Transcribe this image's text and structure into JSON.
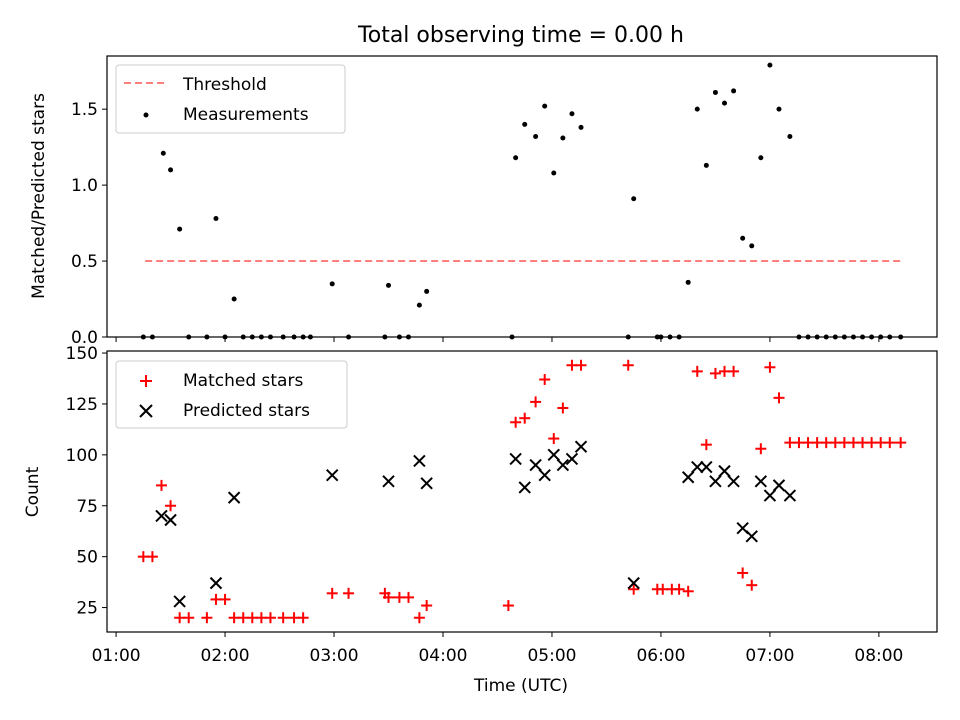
{
  "title": "Total observing time = 0.00 h",
  "xlabel": "Time (UTC)",
  "x_ticks": [
    "01:00",
    "02:00",
    "03:00",
    "04:00",
    "05:00",
    "06:00",
    "07:00",
    "08:00"
  ],
  "chart_data": [
    {
      "type": "scatter",
      "title": "Total observing time = 0.00 h",
      "ylabel": "Matched/Predicted stars",
      "xlim": [
        "00:55",
        "08:32"
      ],
      "ylim": [
        0,
        1.85
      ],
      "y_ticks": [
        "0.0",
        "0.5",
        "1.0",
        "1.5"
      ],
      "legend_position": "top-left",
      "series": [
        {
          "name": "Threshold",
          "style": "dashed-line",
          "color": "#ff7f7f",
          "points": [
            [
              "01:16",
              0.5
            ],
            [
              "08:13",
              0.5
            ]
          ]
        },
        {
          "name": "Measurements",
          "style": "dot",
          "color": "#000000",
          "points": [
            [
              "01:15",
              0
            ],
            [
              "01:20",
              0
            ],
            [
              "01:26",
              1.21
            ],
            [
              "01:30",
              1.1
            ],
            [
              "01:35",
              0.71
            ],
            [
              "01:40",
              0
            ],
            [
              "01:50",
              0
            ],
            [
              "01:55",
              0.78
            ],
            [
              "02:00",
              0
            ],
            [
              "02:05",
              0.25
            ],
            [
              "02:10",
              0
            ],
            [
              "02:15",
              0
            ],
            [
              "02:20",
              0
            ],
            [
              "02:25",
              0
            ],
            [
              "02:32",
              0
            ],
            [
              "02:38",
              0
            ],
            [
              "02:43",
              0
            ],
            [
              "02:47",
              0
            ],
            [
              "02:59",
              0.35
            ],
            [
              "03:08",
              0
            ],
            [
              "03:28",
              0
            ],
            [
              "03:30",
              0.34
            ],
            [
              "03:36",
              0
            ],
            [
              "03:41",
              0
            ],
            [
              "03:47",
              0.21
            ],
            [
              "03:51",
              0.3
            ],
            [
              "04:38",
              0
            ],
            [
              "04:40",
              1.18
            ],
            [
              "04:45",
              1.4
            ],
            [
              "04:51",
              1.32
            ],
            [
              "04:56",
              1.52
            ],
            [
              "05:01",
              1.08
            ],
            [
              "05:06",
              1.31
            ],
            [
              "05:11",
              1.47
            ],
            [
              "05:16",
              1.38
            ],
            [
              "05:42",
              0
            ],
            [
              "05:45",
              0.91
            ],
            [
              "05:58",
              0
            ],
            [
              "06:00",
              0
            ],
            [
              "06:05",
              0
            ],
            [
              "06:10",
              0
            ],
            [
              "06:15",
              0.36
            ],
            [
              "06:20",
              1.5
            ],
            [
              "06:25",
              1.13
            ],
            [
              "06:30",
              1.61
            ],
            [
              "06:35",
              1.54
            ],
            [
              "06:40",
              1.62
            ],
            [
              "06:45",
              0.65
            ],
            [
              "06:50",
              0.6
            ],
            [
              "06:55",
              1.18
            ],
            [
              "07:00",
              1.79
            ],
            [
              "07:05",
              1.5
            ],
            [
              "07:11",
              1.32
            ],
            [
              "07:16",
              0
            ],
            [
              "07:21",
              0
            ],
            [
              "07:26",
              0
            ],
            [
              "07:31",
              0
            ],
            [
              "07:36",
              0
            ],
            [
              "07:41",
              0
            ],
            [
              "07:46",
              0
            ],
            [
              "07:51",
              0
            ],
            [
              "07:56",
              0
            ],
            [
              "08:01",
              0
            ],
            [
              "08:06",
              0
            ],
            [
              "08:12",
              0
            ]
          ]
        }
      ]
    },
    {
      "type": "scatter",
      "xlabel": "Time (UTC)",
      "ylabel": "Count",
      "xlim": [
        "00:55",
        "08:32"
      ],
      "ylim": [
        13,
        151
      ],
      "y_ticks": [
        "25",
        "50",
        "75",
        "100",
        "125",
        "150"
      ],
      "legend_position": "top-left",
      "series": [
        {
          "name": "Matched stars",
          "style": "plus",
          "color": "#ff0000",
          "points": [
            [
              "01:15",
              50
            ],
            [
              "01:20",
              50
            ],
            [
              "01:25",
              85
            ],
            [
              "01:30",
              75
            ],
            [
              "01:35",
              20
            ],
            [
              "01:40",
              20
            ],
            [
              "01:50",
              20
            ],
            [
              "01:55",
              29
            ],
            [
              "02:00",
              29
            ],
            [
              "02:05",
              20
            ],
            [
              "02:10",
              20
            ],
            [
              "02:15",
              20
            ],
            [
              "02:20",
              20
            ],
            [
              "02:25",
              20
            ],
            [
              "02:32",
              20
            ],
            [
              "02:38",
              20
            ],
            [
              "02:43",
              20
            ],
            [
              "02:59",
              32
            ],
            [
              "03:08",
              32
            ],
            [
              "03:28",
              32
            ],
            [
              "03:30",
              30
            ],
            [
              "03:36",
              30
            ],
            [
              "03:41",
              30
            ],
            [
              "03:47",
              20
            ],
            [
              "03:51",
              26
            ],
            [
              "04:36",
              26
            ],
            [
              "04:40",
              116
            ],
            [
              "04:45",
              118
            ],
            [
              "04:51",
              126
            ],
            [
              "04:56",
              137
            ],
            [
              "05:01",
              108
            ],
            [
              "05:06",
              123
            ],
            [
              "05:11",
              144
            ],
            [
              "05:16",
              144
            ],
            [
              "05:42",
              144
            ],
            [
              "05:45",
              34
            ],
            [
              "05:58",
              34
            ],
            [
              "06:01",
              34
            ],
            [
              "06:06",
              34
            ],
            [
              "06:10",
              34
            ],
            [
              "06:15",
              33
            ],
            [
              "06:20",
              141
            ],
            [
              "06:25",
              105
            ],
            [
              "06:30",
              140
            ],
            [
              "06:35",
              141
            ],
            [
              "06:40",
              141
            ],
            [
              "06:45",
              42
            ],
            [
              "06:50",
              36
            ],
            [
              "06:55",
              103
            ],
            [
              "07:00",
              143
            ],
            [
              "07:05",
              128
            ],
            [
              "07:11",
              106
            ],
            [
              "07:16",
              106
            ],
            [
              "07:21",
              106
            ],
            [
              "07:26",
              106
            ],
            [
              "07:31",
              106
            ],
            [
              "07:36",
              106
            ],
            [
              "07:41",
              106
            ],
            [
              "07:46",
              106
            ],
            [
              "07:51",
              106
            ],
            [
              "07:56",
              106
            ],
            [
              "08:01",
              106
            ],
            [
              "08:06",
              106
            ],
            [
              "08:12",
              106
            ]
          ]
        },
        {
          "name": "Predicted stars",
          "style": "x",
          "color": "#000000",
          "points": [
            [
              "01:25",
              70
            ],
            [
              "01:30",
              68
            ],
            [
              "01:35",
              28
            ],
            [
              "01:55",
              37
            ],
            [
              "02:05",
              79
            ],
            [
              "02:59",
              90
            ],
            [
              "03:30",
              87
            ],
            [
              "03:47",
              97
            ],
            [
              "03:51",
              86
            ],
            [
              "04:40",
              98
            ],
            [
              "04:45",
              84
            ],
            [
              "04:51",
              95
            ],
            [
              "04:56",
              90
            ],
            [
              "05:01",
              100
            ],
            [
              "05:06",
              95
            ],
            [
              "05:11",
              98
            ],
            [
              "05:16",
              104
            ],
            [
              "05:45",
              37
            ],
            [
              "06:15",
              89
            ],
            [
              "06:20",
              94
            ],
            [
              "06:25",
              94
            ],
            [
              "06:30",
              87
            ],
            [
              "06:35",
              92
            ],
            [
              "06:40",
              87
            ],
            [
              "06:45",
              64
            ],
            [
              "06:50",
              60
            ],
            [
              "06:55",
              87
            ],
            [
              "07:00",
              80
            ],
            [
              "07:05",
              85
            ],
            [
              "07:11",
              80
            ]
          ]
        }
      ]
    }
  ]
}
